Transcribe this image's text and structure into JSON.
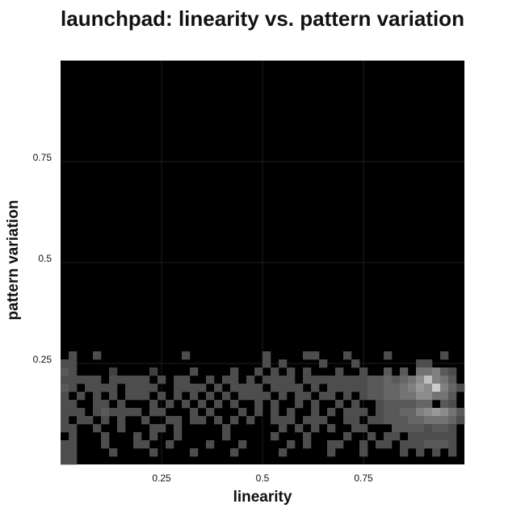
{
  "chart_data": {
    "type": "heatmap",
    "title": "launchpad: linearity vs. pattern variation",
    "xlabel": "linearity",
    "ylabel": "pattern variation",
    "xlim": [
      0,
      1
    ],
    "ylim": [
      0,
      1
    ],
    "xticks": [
      {
        "value": 0.25,
        "label": "0.25"
      },
      {
        "value": 0.5,
        "label": "0.5"
      },
      {
        "value": 0.75,
        "label": "0.75"
      }
    ],
    "yticks": [
      {
        "value": 0.25,
        "label": "0.25"
      },
      {
        "value": 0.5,
        "label": "0.5"
      },
      {
        "value": 0.75,
        "label": "0.75"
      }
    ],
    "grid": true,
    "background": "#000000",
    "grid_color": "#1e1e1e",
    "bin_width": 0.02,
    "bin_height": 0.02,
    "intensity_scale": "0 = empty (black) to 1 = densest (near white)",
    "bins": {
      "0.26": [
        [
          0.03,
          0.3
        ],
        [
          0.09,
          0.3
        ],
        [
          0.31,
          0.3
        ],
        [
          0.51,
          0.3
        ],
        [
          0.61,
          0.3
        ],
        [
          0.63,
          0.3
        ],
        [
          0.71,
          0.3
        ],
        [
          0.81,
          0.3
        ],
        [
          0.95,
          0.3
        ]
      ],
      "0.24": [
        [
          0.01,
          0.3
        ],
        [
          0.03,
          0.3
        ],
        [
          0.51,
          0.3
        ],
        [
          0.55,
          0.3
        ],
        [
          0.65,
          0.3
        ],
        [
          0.73,
          0.3
        ],
        [
          0.89,
          0.3
        ],
        [
          0.91,
          0.3
        ]
      ],
      "0.22": [
        [
          0.01,
          0.35
        ],
        [
          0.03,
          0.3
        ],
        [
          0.13,
          0.25
        ],
        [
          0.23,
          0.25
        ],
        [
          0.33,
          0.3
        ],
        [
          0.43,
          0.3
        ],
        [
          0.49,
          0.3
        ],
        [
          0.53,
          0.3
        ],
        [
          0.57,
          0.3
        ],
        [
          0.61,
          0.3
        ],
        [
          0.69,
          0.3
        ],
        [
          0.75,
          0.3
        ],
        [
          0.81,
          0.35
        ],
        [
          0.85,
          0.35
        ],
        [
          0.89,
          0.45
        ],
        [
          0.91,
          0.45
        ],
        [
          0.93,
          0.5
        ],
        [
          0.95,
          0.35
        ],
        [
          0.97,
          0.3
        ]
      ],
      "0.20": [
        [
          0.01,
          0.3
        ],
        [
          0.03,
          0.3
        ],
        [
          0.05,
          0.3
        ],
        [
          0.07,
          0.3
        ],
        [
          0.09,
          0.3
        ],
        [
          0.13,
          0.3
        ],
        [
          0.15,
          0.3
        ],
        [
          0.17,
          0.3
        ],
        [
          0.19,
          0.3
        ],
        [
          0.21,
          0.3
        ],
        [
          0.25,
          0.3
        ],
        [
          0.29,
          0.3
        ],
        [
          0.31,
          0.3
        ],
        [
          0.37,
          0.3
        ],
        [
          0.41,
          0.3
        ],
        [
          0.43,
          0.3
        ],
        [
          0.47,
          0.3
        ],
        [
          0.51,
          0.3
        ],
        [
          0.53,
          0.3
        ],
        [
          0.55,
          0.3
        ],
        [
          0.57,
          0.3
        ],
        [
          0.61,
          0.3
        ],
        [
          0.63,
          0.3
        ],
        [
          0.65,
          0.3
        ],
        [
          0.67,
          0.3
        ],
        [
          0.69,
          0.3
        ],
        [
          0.71,
          0.3
        ],
        [
          0.73,
          0.3
        ],
        [
          0.75,
          0.3
        ],
        [
          0.77,
          0.35
        ],
        [
          0.79,
          0.35
        ],
        [
          0.81,
          0.4
        ],
        [
          0.83,
          0.35
        ],
        [
          0.85,
          0.4
        ],
        [
          0.87,
          0.45
        ],
        [
          0.89,
          0.55
        ],
        [
          0.91,
          0.75
        ],
        [
          0.93,
          0.5
        ],
        [
          0.95,
          0.45
        ],
        [
          0.97,
          0.35
        ]
      ],
      "0.18": [
        [
          0.01,
          0.35
        ],
        [
          0.03,
          0.3
        ],
        [
          0.07,
          0.3
        ],
        [
          0.09,
          0.3
        ],
        [
          0.11,
          0.3
        ],
        [
          0.13,
          0.3
        ],
        [
          0.17,
          0.3
        ],
        [
          0.19,
          0.3
        ],
        [
          0.21,
          0.3
        ],
        [
          0.23,
          0.3
        ],
        [
          0.29,
          0.3
        ],
        [
          0.31,
          0.3
        ],
        [
          0.33,
          0.3
        ],
        [
          0.35,
          0.3
        ],
        [
          0.39,
          0.3
        ],
        [
          0.43,
          0.3
        ],
        [
          0.45,
          0.3
        ],
        [
          0.47,
          0.3
        ],
        [
          0.49,
          0.3
        ],
        [
          0.53,
          0.3
        ],
        [
          0.55,
          0.3
        ],
        [
          0.57,
          0.3
        ],
        [
          0.59,
          0.3
        ],
        [
          0.63,
          0.3
        ],
        [
          0.67,
          0.3
        ],
        [
          0.69,
          0.3
        ],
        [
          0.71,
          0.3
        ],
        [
          0.73,
          0.3
        ],
        [
          0.75,
          0.3
        ],
        [
          0.77,
          0.35
        ],
        [
          0.79,
          0.35
        ],
        [
          0.81,
          0.4
        ],
        [
          0.83,
          0.4
        ],
        [
          0.85,
          0.45
        ],
        [
          0.87,
          0.5
        ],
        [
          0.89,
          0.6
        ],
        [
          0.91,
          0.55
        ],
        [
          0.93,
          0.8
        ],
        [
          0.95,
          0.5
        ],
        [
          0.97,
          0.4
        ],
        [
          0.99,
          0.3
        ]
      ],
      "0.16": [
        [
          0.01,
          0.3
        ],
        [
          0.05,
          0.3
        ],
        [
          0.09,
          0.3
        ],
        [
          0.13,
          0.3
        ],
        [
          0.17,
          0.3
        ],
        [
          0.19,
          0.3
        ],
        [
          0.21,
          0.3
        ],
        [
          0.25,
          0.3
        ],
        [
          0.29,
          0.3
        ],
        [
          0.33,
          0.3
        ],
        [
          0.37,
          0.3
        ],
        [
          0.41,
          0.3
        ],
        [
          0.45,
          0.3
        ],
        [
          0.47,
          0.3
        ],
        [
          0.49,
          0.3
        ],
        [
          0.51,
          0.3
        ],
        [
          0.55,
          0.3
        ],
        [
          0.59,
          0.3
        ],
        [
          0.61,
          0.3
        ],
        [
          0.65,
          0.3
        ],
        [
          0.67,
          0.3
        ],
        [
          0.71,
          0.3
        ],
        [
          0.75,
          0.3
        ],
        [
          0.77,
          0.35
        ],
        [
          0.79,
          0.35
        ],
        [
          0.81,
          0.4
        ],
        [
          0.83,
          0.4
        ],
        [
          0.85,
          0.45
        ],
        [
          0.87,
          0.45
        ],
        [
          0.89,
          0.55
        ],
        [
          0.91,
          0.55
        ],
        [
          0.93,
          0.45
        ],
        [
          0.95,
          0.45
        ],
        [
          0.97,
          0.35
        ]
      ],
      "0.14": [
        [
          0.01,
          0.3
        ],
        [
          0.03,
          0.3
        ],
        [
          0.09,
          0.3
        ],
        [
          0.11,
          0.3
        ],
        [
          0.15,
          0.3
        ],
        [
          0.23,
          0.3
        ],
        [
          0.27,
          0.3
        ],
        [
          0.31,
          0.3
        ],
        [
          0.35,
          0.3
        ],
        [
          0.39,
          0.3
        ],
        [
          0.43,
          0.3
        ],
        [
          0.49,
          0.3
        ],
        [
          0.53,
          0.3
        ],
        [
          0.59,
          0.3
        ],
        [
          0.63,
          0.3
        ],
        [
          0.69,
          0.3
        ],
        [
          0.73,
          0.3
        ],
        [
          0.79,
          0.3
        ],
        [
          0.81,
          0.35
        ],
        [
          0.83,
          0.35
        ],
        [
          0.85,
          0.35
        ],
        [
          0.87,
          0.35
        ],
        [
          0.89,
          0.4
        ],
        [
          0.91,
          0.4
        ],
        [
          0.95,
          0.35
        ],
        [
          0.97,
          0.3
        ]
      ],
      "0.12": [
        [
          0.01,
          0.3
        ],
        [
          0.03,
          0.3
        ],
        [
          0.05,
          0.3
        ],
        [
          0.09,
          0.3
        ],
        [
          0.11,
          0.35
        ],
        [
          0.13,
          0.3
        ],
        [
          0.15,
          0.3
        ],
        [
          0.17,
          0.3
        ],
        [
          0.19,
          0.3
        ],
        [
          0.23,
          0.3
        ],
        [
          0.25,
          0.3
        ],
        [
          0.33,
          0.3
        ],
        [
          0.37,
          0.3
        ],
        [
          0.45,
          0.3
        ],
        [
          0.49,
          0.3
        ],
        [
          0.53,
          0.3
        ],
        [
          0.57,
          0.3
        ],
        [
          0.63,
          0.3
        ],
        [
          0.67,
          0.3
        ],
        [
          0.71,
          0.3
        ],
        [
          0.73,
          0.3
        ],
        [
          0.75,
          0.3
        ],
        [
          0.79,
          0.3
        ],
        [
          0.81,
          0.35
        ],
        [
          0.83,
          0.35
        ],
        [
          0.85,
          0.4
        ],
        [
          0.87,
          0.4
        ],
        [
          0.89,
          0.5
        ],
        [
          0.91,
          0.55
        ],
        [
          0.93,
          0.6
        ],
        [
          0.95,
          0.55
        ],
        [
          0.97,
          0.45
        ],
        [
          0.99,
          0.35
        ]
      ],
      "0.10": [
        [
          0.01,
          0.3
        ],
        [
          0.05,
          0.3
        ],
        [
          0.07,
          0.3
        ],
        [
          0.11,
          0.3
        ],
        [
          0.15,
          0.3
        ],
        [
          0.21,
          0.3
        ],
        [
          0.27,
          0.3
        ],
        [
          0.29,
          0.3
        ],
        [
          0.33,
          0.3
        ],
        [
          0.35,
          0.3
        ],
        [
          0.39,
          0.3
        ],
        [
          0.43,
          0.3
        ],
        [
          0.47,
          0.3
        ],
        [
          0.53,
          0.3
        ],
        [
          0.55,
          0.3
        ],
        [
          0.57,
          0.3
        ],
        [
          0.61,
          0.3
        ],
        [
          0.63,
          0.3
        ],
        [
          0.65,
          0.3
        ],
        [
          0.71,
          0.3
        ],
        [
          0.73,
          0.3
        ],
        [
          0.77,
          0.3
        ],
        [
          0.79,
          0.3
        ],
        [
          0.81,
          0.35
        ],
        [
          0.83,
          0.35
        ],
        [
          0.85,
          0.35
        ],
        [
          0.87,
          0.4
        ],
        [
          0.89,
          0.4
        ],
        [
          0.91,
          0.45
        ],
        [
          0.93,
          0.45
        ],
        [
          0.95,
          0.45
        ],
        [
          0.97,
          0.4
        ],
        [
          0.99,
          0.3
        ]
      ],
      "0.08": [
        [
          0.01,
          0.3
        ],
        [
          0.03,
          0.3
        ],
        [
          0.09,
          0.3
        ],
        [
          0.15,
          0.3
        ],
        [
          0.23,
          0.3
        ],
        [
          0.25,
          0.3
        ],
        [
          0.29,
          0.3
        ],
        [
          0.41,
          0.3
        ],
        [
          0.55,
          0.3
        ],
        [
          0.59,
          0.3
        ],
        [
          0.63,
          0.3
        ],
        [
          0.67,
          0.3
        ],
        [
          0.73,
          0.3
        ],
        [
          0.75,
          0.3
        ],
        [
          0.83,
          0.35
        ],
        [
          0.85,
          0.35
        ],
        [
          0.87,
          0.35
        ],
        [
          0.89,
          0.35
        ],
        [
          0.91,
          0.3
        ],
        [
          0.93,
          0.35
        ],
        [
          0.95,
          0.35
        ],
        [
          0.97,
          0.3
        ]
      ],
      "0.06": [
        [
          0.03,
          0.3
        ],
        [
          0.11,
          0.3
        ],
        [
          0.19,
          0.3
        ],
        [
          0.23,
          0.3
        ],
        [
          0.29,
          0.3
        ],
        [
          0.41,
          0.3
        ],
        [
          0.53,
          0.3
        ],
        [
          0.61,
          0.3
        ],
        [
          0.71,
          0.3
        ],
        [
          0.77,
          0.3
        ],
        [
          0.81,
          0.3
        ],
        [
          0.83,
          0.3
        ],
        [
          0.87,
          0.3
        ],
        [
          0.89,
          0.3
        ],
        [
          0.91,
          0.3
        ],
        [
          0.93,
          0.3
        ],
        [
          0.95,
          0.3
        ],
        [
          0.97,
          0.3
        ]
      ],
      "0.04": [
        [
          0.01,
          0.3
        ],
        [
          0.03,
          0.3
        ],
        [
          0.11,
          0.3
        ],
        [
          0.19,
          0.3
        ],
        [
          0.21,
          0.3
        ],
        [
          0.27,
          0.3
        ],
        [
          0.37,
          0.3
        ],
        [
          0.45,
          0.3
        ],
        [
          0.57,
          0.3
        ],
        [
          0.61,
          0.3
        ],
        [
          0.67,
          0.3
        ],
        [
          0.69,
          0.3
        ],
        [
          0.75,
          0.3
        ],
        [
          0.79,
          0.3
        ],
        [
          0.81,
          0.3
        ],
        [
          0.85,
          0.3
        ],
        [
          0.87,
          0.3
        ],
        [
          0.89,
          0.3
        ],
        [
          0.91,
          0.35
        ],
        [
          0.93,
          0.35
        ],
        [
          0.95,
          0.35
        ],
        [
          0.97,
          0.3
        ]
      ],
      "0.02": [
        [
          0.01,
          0.3
        ],
        [
          0.03,
          0.3
        ],
        [
          0.13,
          0.3
        ],
        [
          0.23,
          0.3
        ],
        [
          0.33,
          0.3
        ],
        [
          0.43,
          0.3
        ],
        [
          0.55,
          0.3
        ],
        [
          0.67,
          0.3
        ],
        [
          0.75,
          0.3
        ],
        [
          0.85,
          0.3
        ],
        [
          0.89,
          0.3
        ],
        [
          0.93,
          0.3
        ],
        [
          0.97,
          0.3
        ]
      ],
      "0.00": [
        [
          0.01,
          0.3
        ],
        [
          0.03,
          0.3
        ]
      ]
    }
  }
}
